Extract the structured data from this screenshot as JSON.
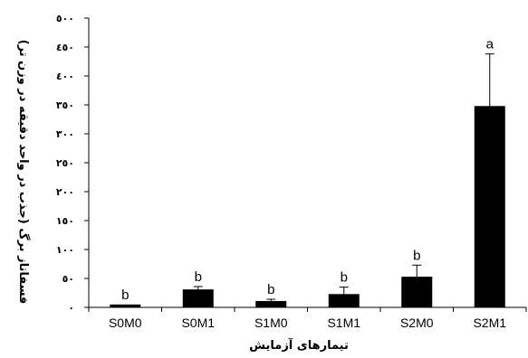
{
  "chart_data": {
    "type": "bar",
    "categories": [
      "S0M0",
      "S0M1",
      "S1M0",
      "S1M1",
      "S2M0",
      "S2M1"
    ],
    "values": [
      5,
      31,
      11,
      23,
      53,
      348
    ],
    "errors": [
      0,
      5,
      3,
      12,
      20,
      90
    ],
    "labels": [
      "b",
      "b",
      "b",
      "b",
      "b",
      "a"
    ],
    "ylim": [
      0,
      500
    ],
    "yticks": [
      0,
      50,
      100,
      150,
      200,
      250,
      300,
      350,
      400,
      450,
      500
    ],
    "ytick_labels": [
      "٠",
      "٥٠",
      "١٠٠",
      "١٥٠",
      "٢٠٠",
      "٢٥٠",
      "٣٠٠",
      "٣٥٠",
      "٤٠٠",
      "٤٥٠",
      "٥٠٠"
    ],
    "xlabel": "تیمارهای آزمایش",
    "ylabel": "فسفاتاز برگ (جذب در واحد دقیقه در وزن تر)",
    "bar_color": "#000000",
    "grid": false
  }
}
